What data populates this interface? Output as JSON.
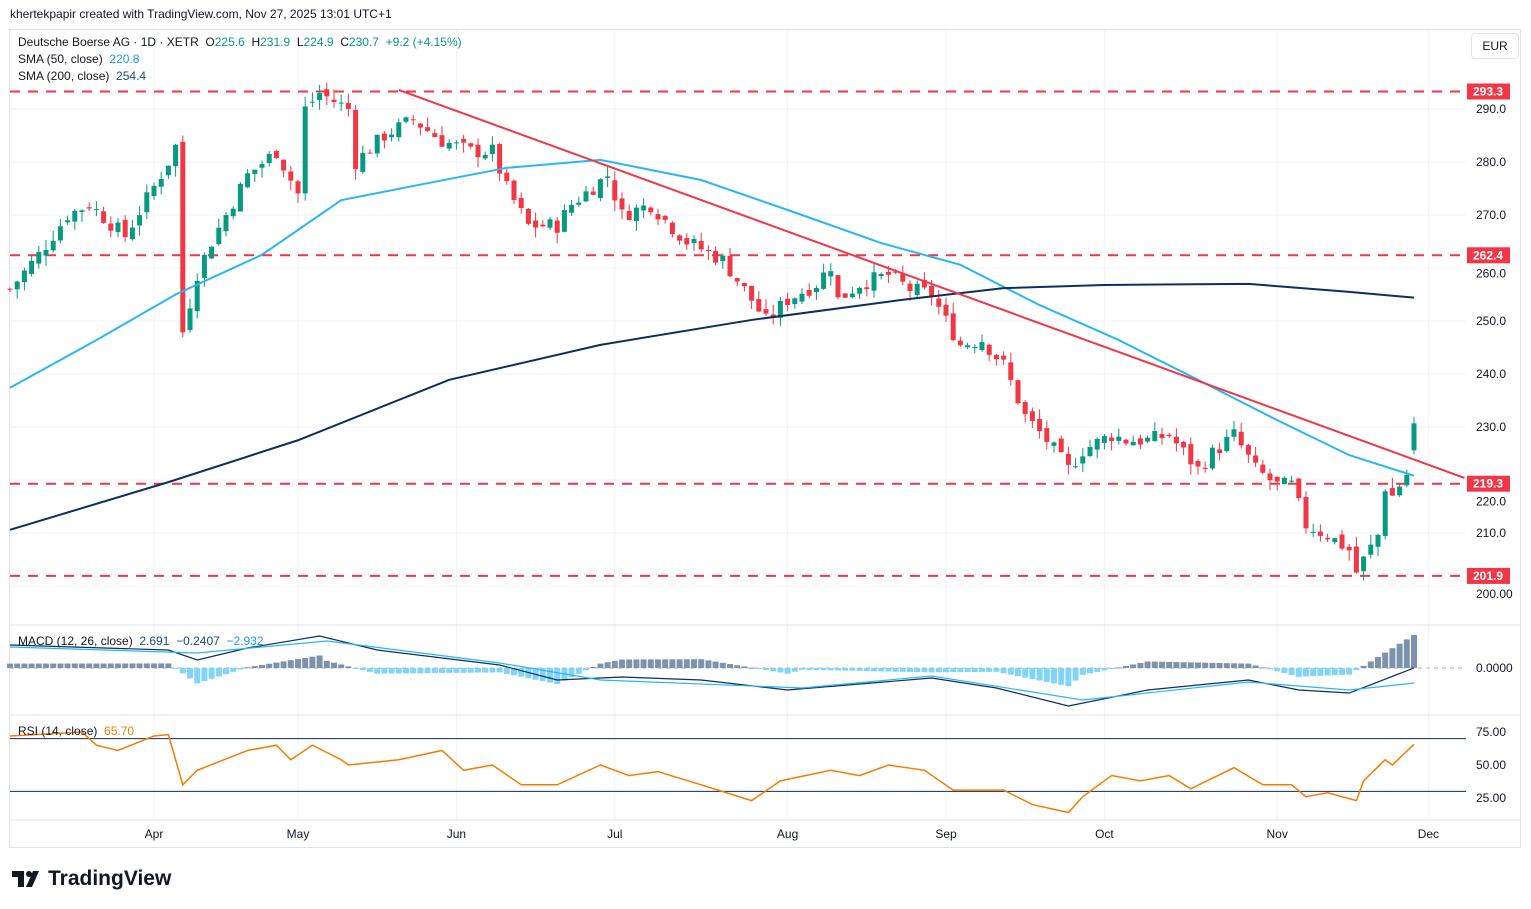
{
  "credit": "khertekpapir created with TradingView.com, Nov 27, 2025 13:01 UTC+1",
  "legend": {
    "symbol": "Deutsche Boerse AG · 1D · XETR",
    "o_label": "O",
    "o": "225.6",
    "h_label": "H",
    "h": "231.9",
    "l_label": "L",
    "l": "224.9",
    "c_label": "C",
    "c": "230.7",
    "change": "+9.2 (+4.15%)",
    "sma50_label": "SMA (50, close)",
    "sma50": "220.8",
    "sma200_label": "SMA (200, close)",
    "sma200": "254.4",
    "macd_label": "MACD (12, 26, close)",
    "macd_hist": "2.691",
    "macd_line": "−0.2407",
    "macd_signal": "−2.932",
    "rsi_label": "RSI (14, close)",
    "rsi": "65.70"
  },
  "currency": "EUR",
  "logo_text": "TradingView",
  "colors": {
    "up": "#089981",
    "down": "#f23645",
    "sma50": "#29b6f6",
    "sma200": "#0d2f5c",
    "trend": "#f23645",
    "rsi": "#f57c00",
    "hist_pos": "#7d93ad",
    "hist_neg": "#81d4fa"
  },
  "chart_data": {
    "type": "candlestick",
    "title": "Deutsche Boerse AG · 1D · XETR",
    "ylim": [
      196,
      296
    ],
    "y_ticks": [
      "290.0",
      "280.0",
      "270.0",
      "260.0",
      "250.0",
      "240.0",
      "230.0",
      "220.0",
      "210.0",
      "200.00"
    ],
    "y_tick_values": [
      290,
      280,
      270,
      260,
      250,
      240,
      230,
      220,
      210,
      200
    ],
    "x_ticks": [
      {
        "day": 20,
        "label": "Apr"
      },
      {
        "day": 40,
        "label": "May"
      },
      {
        "day": 62,
        "label": "Jun"
      },
      {
        "day": 84,
        "label": "Jul"
      },
      {
        "day": 108,
        "label": "Aug"
      },
      {
        "day": 130,
        "label": "Sep"
      },
      {
        "day": 152,
        "label": "Oct"
      },
      {
        "day": 176,
        "label": "Nov"
      },
      {
        "day": 197,
        "label": "Dec"
      }
    ],
    "close_path": [
      [
        0,
        256
      ],
      [
        4,
        262.5
      ],
      [
        8,
        270
      ],
      [
        11,
        272
      ],
      [
        16,
        266
      ],
      [
        22,
        280
      ],
      [
        23,
        283
      ],
      [
        24,
        248
      ],
      [
        26,
        259
      ],
      [
        28,
        265
      ],
      [
        33,
        277.5
      ],
      [
        37,
        282
      ],
      [
        40,
        274
      ],
      [
        41,
        290
      ],
      [
        43,
        293
      ],
      [
        47,
        290
      ],
      [
        48,
        280
      ],
      [
        52,
        285
      ],
      [
        56,
        288
      ],
      [
        60,
        284
      ],
      [
        64,
        282
      ],
      [
        67,
        282
      ],
      [
        69,
        275
      ],
      [
        72,
        268
      ],
      [
        76,
        268
      ],
      [
        78,
        272
      ],
      [
        83,
        277.5
      ],
      [
        85,
        270
      ],
      [
        89,
        272
      ],
      [
        91,
        269
      ],
      [
        94,
        265
      ],
      [
        99,
        261.5
      ],
      [
        103,
        254
      ],
      [
        105,
        250
      ],
      [
        108,
        254
      ],
      [
        112,
        257
      ],
      [
        114,
        260.5
      ],
      [
        115,
        254
      ],
      [
        118,
        257
      ],
      [
        122,
        258.7
      ],
      [
        125,
        256
      ],
      [
        128,
        255
      ],
      [
        130,
        250
      ],
      [
        132,
        245.5
      ],
      [
        135,
        246.5
      ],
      [
        138,
        241.7
      ],
      [
        141,
        232
      ],
      [
        144,
        227.5
      ],
      [
        147,
        222
      ],
      [
        149,
        225.6
      ],
      [
        153,
        228.5
      ],
      [
        155,
        227.5
      ],
      [
        158,
        227.5
      ],
      [
        161,
        228.5
      ],
      [
        165,
        222
      ],
      [
        167,
        225
      ],
      [
        170,
        228.5
      ],
      [
        173,
        222
      ],
      [
        176,
        219
      ],
      [
        178,
        219
      ],
      [
        180,
        211.5
      ],
      [
        183,
        209.6
      ],
      [
        186,
        206.8
      ],
      [
        187,
        202.6
      ],
      [
        190,
        209.6
      ],
      [
        191,
        218.7
      ],
      [
        192,
        217
      ],
      [
        194,
        221
      ],
      [
        195,
        230.7
      ]
    ],
    "sma50": [
      [
        0,
        237.4
      ],
      [
        12,
        246.4
      ],
      [
        23,
        255
      ],
      [
        35,
        262.5
      ],
      [
        46,
        272.8
      ],
      [
        58,
        276
      ],
      [
        69,
        278.9
      ],
      [
        82,
        280.4
      ],
      [
        96,
        276.6
      ],
      [
        110,
        270
      ],
      [
        121,
        264.7
      ],
      [
        132,
        260.6
      ],
      [
        143,
        253
      ],
      [
        154,
        246.4
      ],
      [
        165,
        238.9
      ],
      [
        176,
        231.3
      ],
      [
        186,
        224.7
      ],
      [
        195,
        220.8
      ]
    ],
    "sma200": [
      [
        0,
        210.6
      ],
      [
        22,
        219.6
      ],
      [
        40,
        227.5
      ],
      [
        61,
        238.9
      ],
      [
        82,
        245.5
      ],
      [
        103,
        250.2
      ],
      [
        124,
        254
      ],
      [
        138,
        256.2
      ],
      [
        152,
        256.8
      ],
      [
        172,
        257
      ],
      [
        186,
        255.5
      ],
      [
        195,
        254.4
      ]
    ],
    "trendline": [
      [
        54,
        293.6
      ],
      [
        202,
        220.4
      ]
    ],
    "levels": [
      {
        "value": 293.3,
        "label": "293.3"
      },
      {
        "value": 262.4,
        "label": "262.4"
      },
      {
        "value": 219.3,
        "label": "219.3"
      },
      {
        "value": 201.9,
        "label": "201.9"
      }
    ],
    "macd": {
      "zero_label": "0.0000",
      "line": [
        [
          0,
          4.6
        ],
        [
          22,
          3.6
        ],
        [
          26,
          1.6
        ],
        [
          33,
          4
        ],
        [
          43,
          6.4
        ],
        [
          51,
          3.6
        ],
        [
          68,
          0.6
        ],
        [
          76,
          -2.4
        ],
        [
          85,
          -1.8
        ],
        [
          96,
          -2.4
        ],
        [
          108,
          -4.4
        ],
        [
          128,
          -2
        ],
        [
          137,
          -4
        ],
        [
          147,
          -7.6
        ],
        [
          158,
          -4.4
        ],
        [
          172,
          -2.4
        ],
        [
          179,
          -4.4
        ],
        [
          186,
          -5
        ],
        [
          195,
          0
        ]
      ],
      "signal": [
        [
          0,
          4.2
        ],
        [
          26,
          3
        ],
        [
          44,
          5.4
        ],
        [
          68,
          1
        ],
        [
          82,
          -2.4
        ],
        [
          110,
          -4
        ],
        [
          128,
          -1.6
        ],
        [
          149,
          -6.4
        ],
        [
          172,
          -2.8
        ],
        [
          186,
          -4.4
        ],
        [
          195,
          -3
        ]
      ]
    },
    "rsi": {
      "ticks": [
        "75.00",
        "50.00",
        "25.00"
      ],
      "tick_values": [
        75,
        50,
        25
      ],
      "bands": [
        70,
        30
      ],
      "path": [
        [
          0,
          72
        ],
        [
          10,
          75
        ],
        [
          12,
          65
        ],
        [
          15,
          61
        ],
        [
          20,
          72
        ],
        [
          22,
          73
        ],
        [
          24,
          35
        ],
        [
          26,
          46
        ],
        [
          33,
          61
        ],
        [
          37,
          65
        ],
        [
          39,
          54
        ],
        [
          42,
          65
        ],
        [
          46,
          54
        ],
        [
          47,
          50
        ],
        [
          54,
          54
        ],
        [
          60,
          61
        ],
        [
          63,
          46
        ],
        [
          67,
          50
        ],
        [
          71,
          35
        ],
        [
          76,
          35
        ],
        [
          82,
          50
        ],
        [
          86,
          42
        ],
        [
          90,
          45
        ],
        [
          96,
          35
        ],
        [
          103,
          23
        ],
        [
          107,
          38
        ],
        [
          114,
          46
        ],
        [
          118,
          42
        ],
        [
          122,
          50
        ],
        [
          127,
          46
        ],
        [
          131,
          31
        ],
        [
          138,
          31
        ],
        [
          142,
          20
        ],
        [
          147,
          14
        ],
        [
          149,
          26
        ],
        [
          153,
          42
        ],
        [
          157,
          38
        ],
        [
          161,
          42
        ],
        [
          164,
          32
        ],
        [
          170,
          48
        ],
        [
          174,
          35
        ],
        [
          178,
          35
        ],
        [
          180,
          26
        ],
        [
          183,
          29
        ],
        [
          187,
          23
        ],
        [
          188,
          38
        ],
        [
          191,
          54
        ],
        [
          192,
          50
        ],
        [
          195,
          65.7
        ]
      ]
    }
  }
}
